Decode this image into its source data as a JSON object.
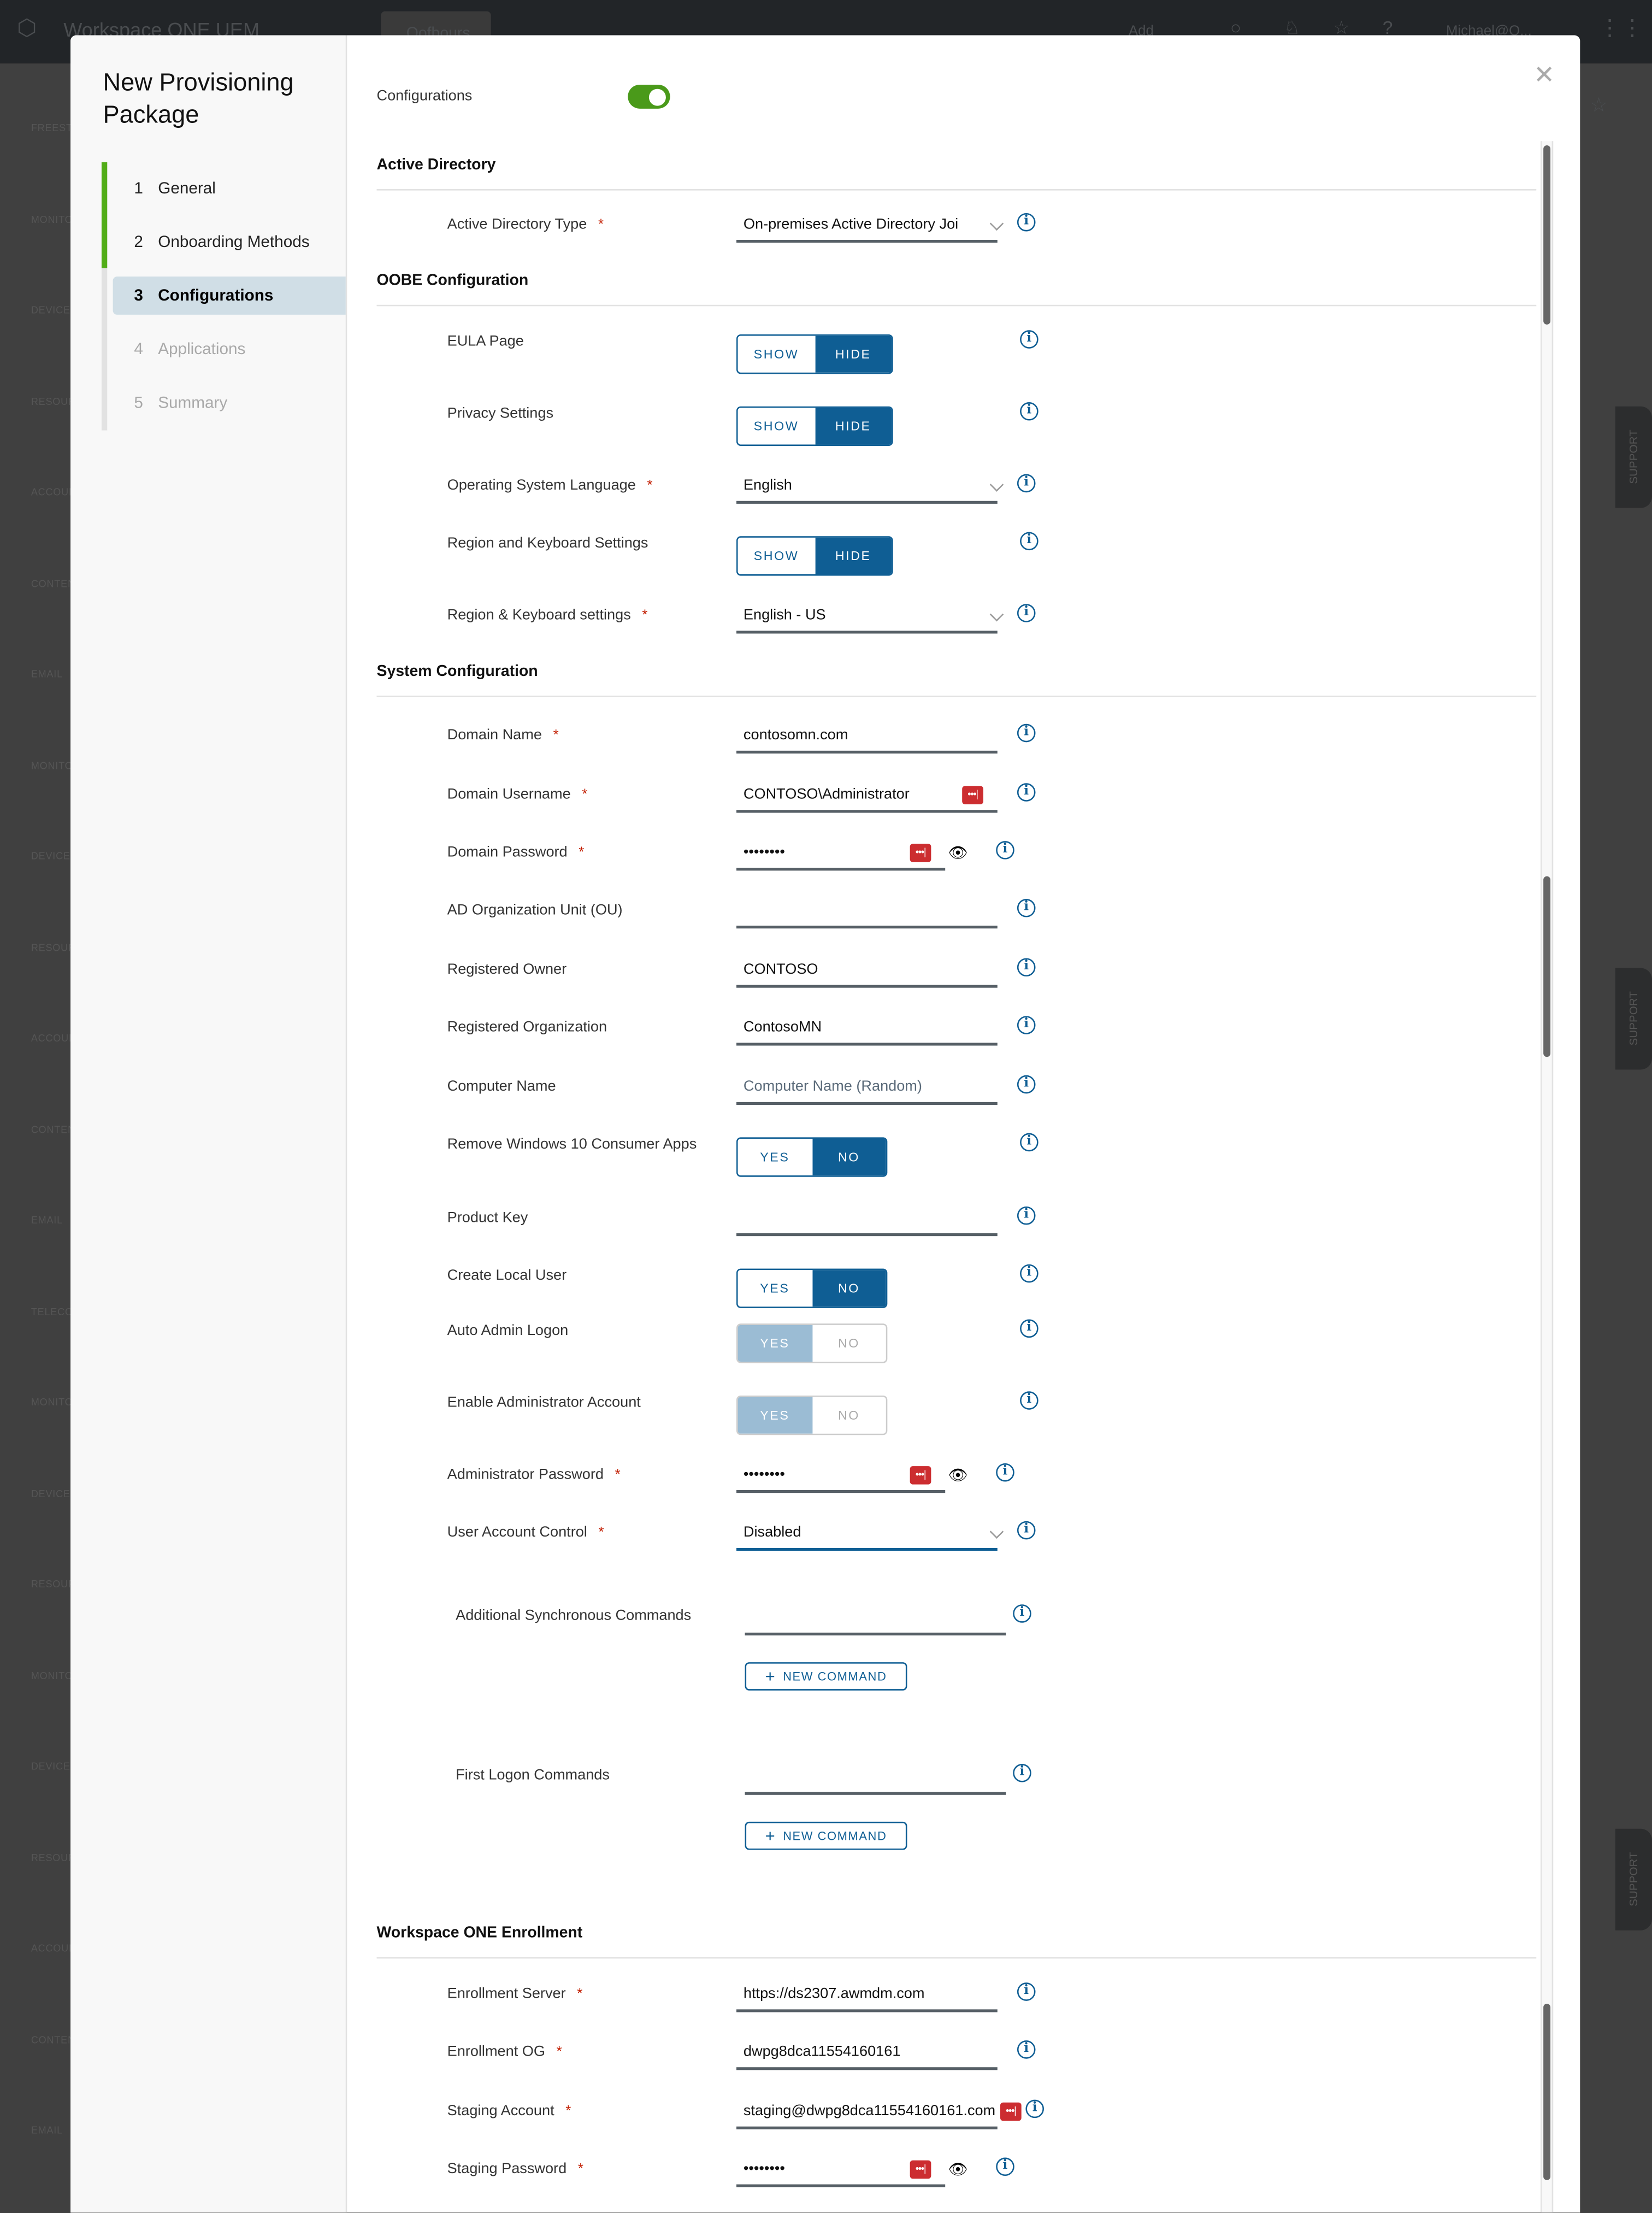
{
  "background": {
    "app_title": "Workspace ONE UEM",
    "tab": "Oofbours",
    "add_menu": "Add",
    "user": "Michael@O...",
    "sidebar_labels": [
      "FREESTYLE",
      "MONITOR",
      "DEVICES",
      "RESOURCES",
      "ACCOUNTS",
      "CONTENT",
      "EMAIL",
      "MONITOR",
      "DEVICES",
      "RESOURCES",
      "ACCOUNTS",
      "CONTENT",
      "EMAIL",
      "TELECOM",
      "MONITOR",
      "DEVICES",
      "RESOURCES",
      "MONITOR",
      "DEVICES",
      "RESOURCES",
      "ACCOUNTS",
      "CONTENT",
      "EMAIL",
      "TELECOM"
    ],
    "support_label": "SUPPORT"
  },
  "modal": {
    "title": "New Provisioning Package",
    "close_icon": "close-icon",
    "steps": [
      {
        "num": "1",
        "label": "General",
        "state": "done"
      },
      {
        "num": "2",
        "label": "Onboarding Methods",
        "state": "done"
      },
      {
        "num": "3",
        "label": "Configurations",
        "state": "active"
      },
      {
        "num": "4",
        "label": "Applications",
        "state": "todo"
      },
      {
        "num": "5",
        "label": "Summary",
        "state": "todo"
      }
    ],
    "configurations_toggle": {
      "label": "Configurations",
      "on": true,
      "color": "#4a9a1a"
    }
  },
  "colors": {
    "primary": "#0f5e94",
    "required": "#c21d00",
    "step_done": "#52ad17",
    "lastpass": "#cc2d30"
  },
  "sections": [
    "Active Directory",
    "OOBE Configuration",
    "System Configuration",
    "Workspace ONE Enrollment"
  ],
  "fields": [
    {
      "label": "Active Directory Type",
      "required": true,
      "type": "select",
      "value": "On-premises Active Directory Joi"
    },
    {
      "label": "EULA Page",
      "type": "toggle",
      "options": [
        "SHOW",
        "HIDE"
      ],
      "selected": "HIDE"
    },
    {
      "label": "Privacy Settings",
      "type": "toggle",
      "options": [
        "SHOW",
        "HIDE"
      ],
      "selected": "HIDE"
    },
    {
      "label": "Operating System Language",
      "required": true,
      "type": "select",
      "value": "English"
    },
    {
      "label": "Region and Keyboard Settings",
      "type": "toggle",
      "options": [
        "SHOW",
        "HIDE"
      ],
      "selected": "HIDE"
    },
    {
      "label": "Region & Keyboard settings",
      "required": true,
      "type": "select",
      "value": "English - US"
    },
    {
      "label": "Domain Name",
      "required": true,
      "type": "text",
      "value": "contosomn.com"
    },
    {
      "label": "Domain Username",
      "required": true,
      "type": "text",
      "value": "CONTOSO\\Administrator",
      "lastpass": true
    },
    {
      "label": "Domain Password",
      "required": true,
      "type": "password",
      "value": "••••••••"
    },
    {
      "label": "AD Organization Unit (OU)",
      "type": "text",
      "value": ""
    },
    {
      "label": "Registered Owner",
      "type": "text",
      "value": "CONTOSO"
    },
    {
      "label": "Registered Organization",
      "type": "text",
      "value": "ContosoMN"
    },
    {
      "label": "Computer Name",
      "type": "text",
      "value": "",
      "placeholder": "Computer Name (Random)"
    },
    {
      "label": "Remove Windows 10 Consumer Apps",
      "type": "toggle",
      "options": [
        "YES",
        "NO"
      ],
      "selected": "NO"
    },
    {
      "label": "Product Key",
      "type": "text",
      "value": ""
    },
    {
      "label": "Create Local User",
      "type": "toggle",
      "options": [
        "YES",
        "NO"
      ],
      "selected": "NO"
    },
    {
      "label": "Auto Admin Logon",
      "type": "toggle",
      "options": [
        "YES",
        "NO"
      ],
      "selected": "YES",
      "disabled": true
    },
    {
      "label": "Enable Administrator Account",
      "type": "toggle",
      "options": [
        "YES",
        "NO"
      ],
      "selected": "YES",
      "disabled": true
    },
    {
      "label": "Administrator Password",
      "required": true,
      "type": "password",
      "value": "••••••••"
    },
    {
      "label": "User Account Control",
      "required": true,
      "type": "select",
      "value": "Disabled",
      "focused": true
    },
    {
      "label": "Additional Synchronous Commands",
      "type": "commands",
      "button": "NEW COMMAND"
    },
    {
      "label": "First Logon Commands",
      "type": "commands",
      "button": "NEW COMMAND"
    },
    {
      "label": "Enrollment Server",
      "required": true,
      "type": "text",
      "value": "https://ds2307.awmdm.com"
    },
    {
      "label": "Enrollment OG",
      "required": true,
      "type": "text",
      "value": "dwpg8dca11554160161"
    },
    {
      "label": "Staging Account",
      "required": true,
      "type": "text",
      "value": "staging@dwpg8dca11554160161.com",
      "lastpass": true
    },
    {
      "label": "Staging Password",
      "required": true,
      "type": "password",
      "value": "••••••••"
    }
  ],
  "icons": {
    "info": "info-icon",
    "lastpass": "lastpass-icon",
    "eye": "eye-icon",
    "chevron": "chevron-down-icon",
    "plus": "plus-icon"
  }
}
